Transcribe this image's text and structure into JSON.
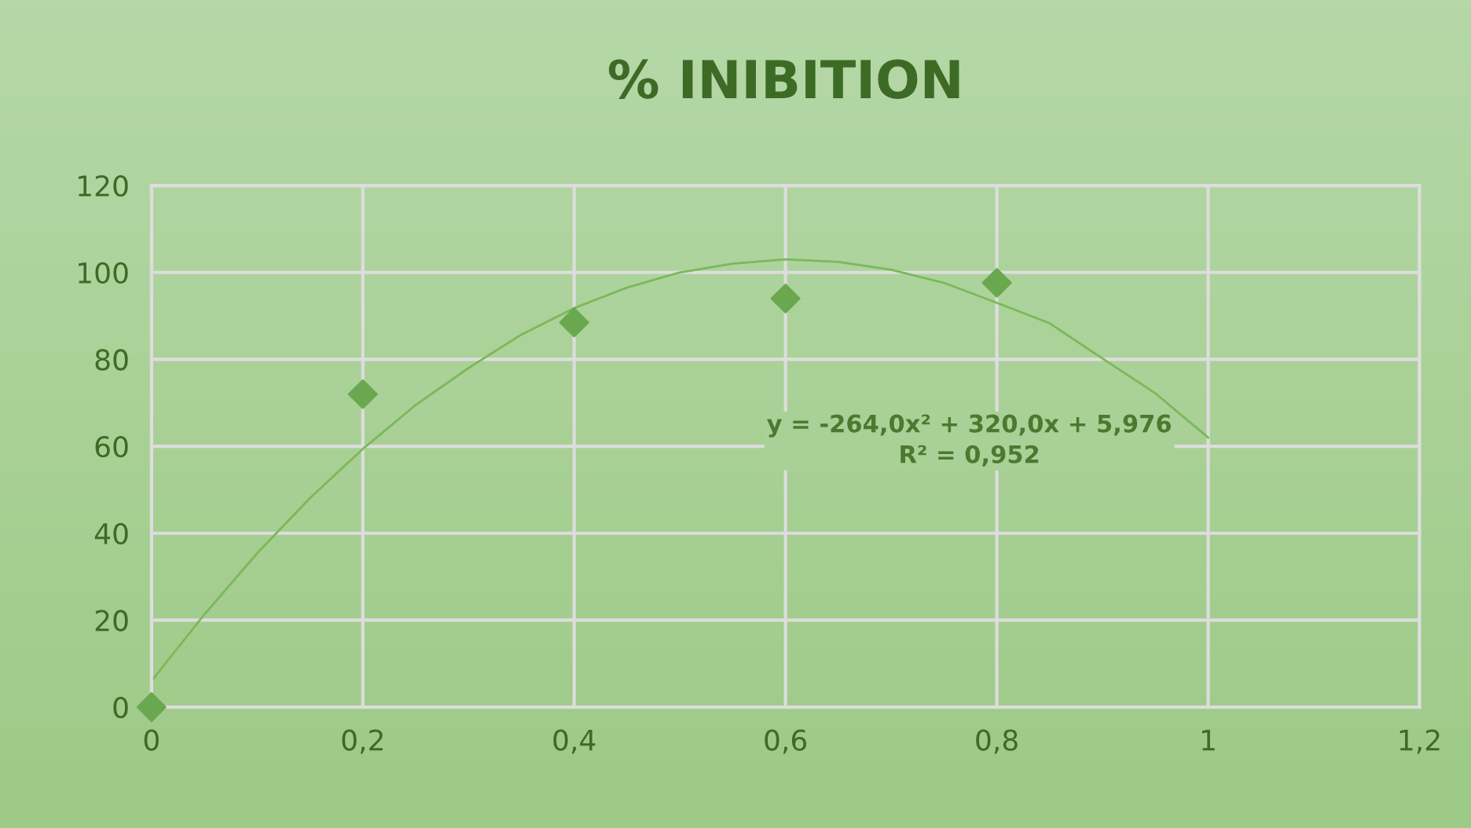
{
  "chart_data": {
    "type": "scatter",
    "title": "% INIBITION",
    "x": [
      0,
      0.2,
      0.4,
      0.6,
      0.8
    ],
    "series": [
      {
        "color": "#6aa84f",
        "marker": "diamond",
        "values": [
          0,
          72,
          88.5,
          94,
          97.6
        ]
      },
      {
        "type": "line",
        "color": "#7cb85a",
        "marker": "none",
        "x": [
          0,
          0.05,
          0.1,
          0.15,
          0.2,
          0.25,
          0.3,
          0.35,
          0.4,
          0.45,
          0.5,
          0.55,
          0.6,
          0.65,
          0.7,
          0.75,
          0.8,
          0.85,
          0.9,
          0.95,
          1.0
        ],
        "values": [
          6,
          21.3,
          35.4,
          48.1,
          59.4,
          69.5,
          78,
          85.7,
          91.8,
          96.5,
          100,
          102,
          103,
          102.4,
          100.6,
          97.6,
          93,
          88.3,
          80.2,
          72.2,
          62
        ]
      }
    ],
    "xlim": [
      0,
      1.2
    ],
    "xticks": [
      {
        "value": 0,
        "label": "0"
      },
      {
        "value": 0.2,
        "label": "0,2"
      },
      {
        "value": 0.4,
        "label": "0,4"
      },
      {
        "value": 0.6,
        "label": "0,6"
      },
      {
        "value": 0.8,
        "label": "0,8"
      },
      {
        "value": 1,
        "label": "1"
      },
      {
        "value": 1.2,
        "label": "1,2"
      }
    ],
    "ylim": [
      0,
      120
    ],
    "yticks": [
      0,
      20,
      40,
      60,
      80,
      100,
      120
    ],
    "grid": true,
    "annotations": [
      "y = -264,0x² + 320,0x + 5,976\nR² = 0,952"
    ]
  }
}
